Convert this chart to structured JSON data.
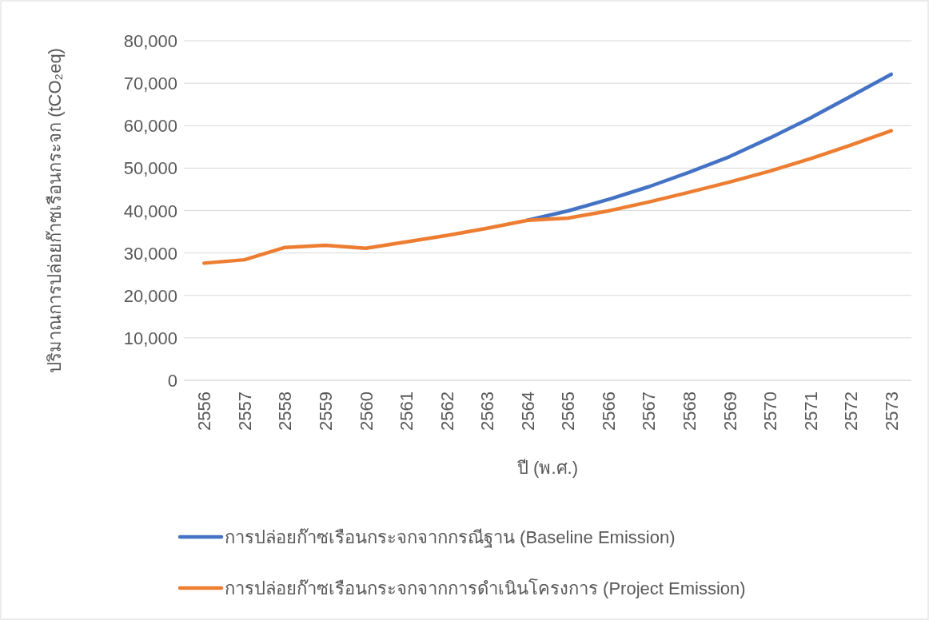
{
  "chart_data": {
    "type": "line",
    "ylabel": "ปริมาณการปล่อยก๊าซเรือนกระจก (tCO₂eq)",
    "xlabel": "ปี (พ.ศ.)",
    "categories": [
      "2556",
      "2557",
      "2558",
      "2559",
      "2560",
      "2561",
      "2562",
      "2563",
      "2564",
      "2565",
      "2566",
      "2567",
      "2568",
      "2569",
      "2570",
      "2571",
      "2572",
      "2573"
    ],
    "series": [
      {
        "name": "การปล่อยก๊าซเรือนกระจกจากกรณีฐาน (Baseline Emission)",
        "color": "#4472c4",
        "values": [
          null,
          null,
          null,
          null,
          null,
          null,
          null,
          null,
          37700,
          39900,
          42600,
          45600,
          49000,
          52700,
          57100,
          61800,
          66900,
          72100
        ]
      },
      {
        "name": "การปล่อยก๊าซเรือนกระจกจากการดำเนินโครงการ (Project Emission)",
        "color": "#ed7d31",
        "values": [
          27600,
          28400,
          31300,
          31800,
          31100,
          32600,
          34100,
          35800,
          37700,
          38200,
          39900,
          42000,
          44300,
          46700,
          49300,
          52200,
          55400,
          58800
        ]
      }
    ],
    "ylim": [
      0,
      80000
    ],
    "yticks": [
      0,
      {
        "value": 10000,
        "label": "10,000"
      },
      {
        "value": 20000,
        "label": "20,000"
      },
      {
        "value": 30000,
        "label": "30,000"
      },
      {
        "value": 40000,
        "label": "40,000"
      },
      {
        "value": 50000,
        "label": "50,000"
      },
      {
        "value": 60000,
        "label": "60,000"
      },
      {
        "value": 70000,
        "label": "70,000"
      },
      {
        "value": 80000,
        "label": "80,000"
      }
    ],
    "grid": "y",
    "legend": "bottom"
  }
}
